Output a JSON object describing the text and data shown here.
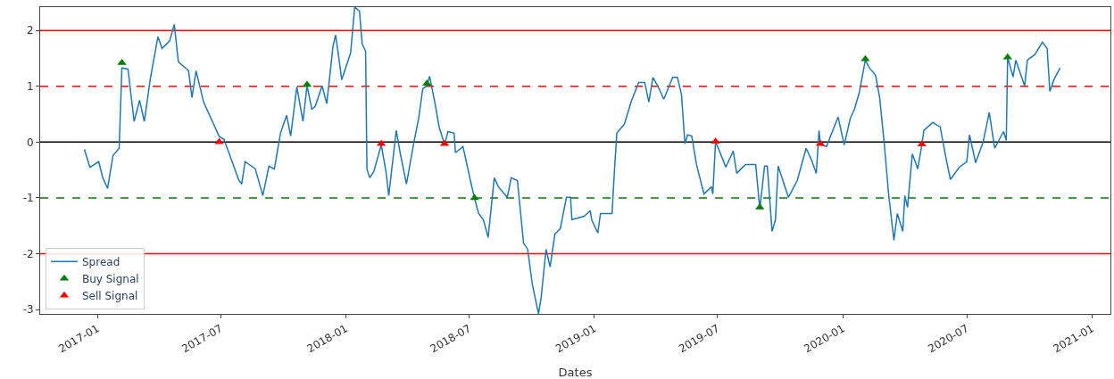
{
  "chart_data": {
    "type": "line",
    "xlabel": "Dates",
    "xlim": [
      "2016-10-09",
      "2021-01-28"
    ],
    "ylim": [
      -3.08,
      2.42
    ],
    "xticks": [
      {
        "value": "2017-01-01",
        "label": "2017-01"
      },
      {
        "value": "2017-07-01",
        "label": "2017-07"
      },
      {
        "value": "2018-01-01",
        "label": "2018-01"
      },
      {
        "value": "2018-07-01",
        "label": "2018-07"
      },
      {
        "value": "2019-01-01",
        "label": "2019-01"
      },
      {
        "value": "2019-07-01",
        "label": "2019-07"
      },
      {
        "value": "2020-01-01",
        "label": "2020-01"
      },
      {
        "value": "2020-07-01",
        "label": "2020-07"
      },
      {
        "value": "2021-01-01",
        "label": "2021-01"
      }
    ],
    "yticks": [
      -3,
      -2,
      -1,
      0,
      1,
      2
    ],
    "grid": false,
    "legend": "bottom left",
    "ref_lines": [
      {
        "axis": "y",
        "value": 2,
        "color": "#ff0000",
        "line_style": "solid"
      },
      {
        "axis": "y",
        "value": 1,
        "color": "#ff0000",
        "line_style": "dashed"
      },
      {
        "axis": "y",
        "value": 0,
        "color": "#000000",
        "line_style": "solid"
      },
      {
        "axis": "y",
        "value": -1,
        "color": "#008000",
        "line_style": "dashed"
      },
      {
        "axis": "y",
        "value": -2,
        "color": "#ff0000",
        "line_style": "solid"
      }
    ],
    "series": [
      {
        "name": "Spread",
        "color": "#1f77b4",
        "x": [
          "2016-12-13",
          "2016-12-21",
          "2017-01-03",
          "2017-01-09",
          "2017-01-16",
          "2017-01-24",
          "2017-02-02",
          "2017-02-06",
          "2017-02-15",
          "2017-02-24",
          "2017-03-04",
          "2017-03-11",
          "2017-03-20",
          "2017-03-31",
          "2017-04-06",
          "2017-04-17",
          "2017-04-24",
          "2017-04-30",
          "2017-05-15",
          "2017-05-20",
          "2017-05-26",
          "2017-06-06",
          "2017-06-19",
          "2017-06-29",
          "2017-07-06",
          "2017-07-28",
          "2017-08-01",
          "2017-08-06",
          "2017-08-21",
          "2017-09-01",
          "2017-09-10",
          "2017-09-18",
          "2017-09-27",
          "2017-10-06",
          "2017-10-12",
          "2017-10-21",
          "2017-10-30",
          "2017-11-05",
          "2017-11-12",
          "2017-11-17",
          "2017-11-27",
          "2017-12-04",
          "2017-12-13",
          "2017-12-17",
          "2017-12-26",
          "2018-01-08",
          "2018-01-14",
          "2018-01-21",
          "2018-01-25",
          "2018-01-30",
          "2018-02-01",
          "2018-02-05",
          "2018-02-11",
          "2018-02-22",
          "2018-03-01",
          "2018-03-05",
          "2018-03-16",
          "2018-03-22",
          "2018-03-31",
          "2018-04-11",
          "2018-04-18",
          "2018-04-24",
          "2018-04-30",
          "2018-05-04",
          "2018-05-12",
          "2018-05-18",
          "2018-05-26",
          "2018-05-31",
          "2018-06-09",
          "2018-06-11",
          "2018-06-22",
          "2018-07-03",
          "2018-07-09",
          "2018-07-15",
          "2018-07-22",
          "2018-07-29",
          "2018-08-07",
          "2018-08-13",
          "2018-08-26",
          "2018-09-01",
          "2018-09-10",
          "2018-09-19",
          "2018-09-25",
          "2018-10-02",
          "2018-10-11",
          "2018-10-15",
          "2018-10-22",
          "2018-10-28",
          "2018-11-04",
          "2018-11-12",
          "2018-11-21",
          "2018-11-27",
          "2018-11-29",
          "2018-12-17",
          "2018-12-26",
          "2018-12-28",
          "2019-01-06",
          "2019-01-10",
          "2019-01-27",
          "2019-01-30",
          "2019-02-03",
          "2019-02-14",
          "2019-02-24",
          "2019-03-07",
          "2019-03-16",
          "2019-03-22",
          "2019-03-28",
          "2019-04-04",
          "2019-04-13",
          "2019-04-26",
          "2019-05-03",
          "2019-05-09",
          "2019-05-14",
          "2019-05-18",
          "2019-05-24",
          "2019-05-31",
          "2019-06-11",
          "2019-06-22",
          "2019-06-24",
          "2019-06-28",
          "2019-07-09",
          "2019-07-13",
          "2019-07-24",
          "2019-07-29",
          "2019-08-11",
          "2019-08-26",
          "2019-09-01",
          "2019-09-08",
          "2019-09-12",
          "2019-09-19",
          "2019-09-24",
          "2019-09-28",
          "2019-10-13",
          "2019-10-26",
          "2019-11-08",
          "2019-11-16",
          "2019-11-23",
          "2019-11-27",
          "2019-11-29",
          "2019-12-08",
          "2019-12-25",
          "2020-01-03",
          "2020-01-12",
          "2020-01-18",
          "2020-01-25",
          "2020-02-03",
          "2020-02-09",
          "2020-02-18",
          "2020-02-24",
          "2020-03-02",
          "2020-03-08",
          "2020-03-16",
          "2020-03-21",
          "2020-03-29",
          "2020-04-01",
          "2020-04-05",
          "2020-04-12",
          "2020-04-20",
          "2020-04-26",
          "2020-04-29",
          "2020-05-12",
          "2020-05-23",
          "2020-06-01",
          "2020-06-07",
          "2020-06-20",
          "2020-07-01",
          "2020-07-05",
          "2020-07-14",
          "2020-07-25",
          "2020-08-03",
          "2020-08-11",
          "2020-08-24",
          "2020-08-28",
          "2020-08-30",
          "2020-09-07",
          "2020-09-11",
          "2020-09-24",
          "2020-09-28",
          "2020-10-09",
          "2020-10-20",
          "2020-10-27",
          "2020-10-31",
          "2020-11-06",
          "2020-11-15"
        ],
        "values": [
          -0.13,
          -0.45,
          -0.35,
          -0.64,
          -0.83,
          -0.24,
          -0.11,
          1.33,
          1.31,
          0.37,
          0.75,
          0.37,
          1.15,
          1.89,
          1.68,
          1.81,
          2.11,
          1.44,
          1.28,
          0.8,
          1.28,
          0.72,
          0.37,
          0.1,
          0.05,
          -0.69,
          -0.75,
          -0.35,
          -0.48,
          -0.96,
          -0.43,
          -0.48,
          0.16,
          0.48,
          0.11,
          0.99,
          0.37,
          1.01,
          0.59,
          0.64,
          1.01,
          0.69,
          1.71,
          1.92,
          1.12,
          1.6,
          2.42,
          2.35,
          1.76,
          1.63,
          -0.48,
          -0.64,
          -0.53,
          -0.05,
          -0.53,
          -0.96,
          0.21,
          -0.21,
          -0.75,
          0,
          0.43,
          0.96,
          1.01,
          1.18,
          0.69,
          0.27,
          -0.04,
          0.19,
          0.16,
          -0.19,
          -0.08,
          -0.69,
          -1.01,
          -1.28,
          -1.39,
          -1.71,
          -0.64,
          -0.8,
          -0.99,
          -0.64,
          -0.69,
          -1.81,
          -1.92,
          -2.56,
          -3.08,
          -2.77,
          -1.92,
          -2.24,
          -1.65,
          -1.55,
          -0.99,
          -0.99,
          -1.39,
          -1.33,
          -1.23,
          -1.39,
          -1.63,
          -1.28,
          -1.28,
          -0.61,
          0.16,
          0.32,
          0.72,
          1.07,
          1.07,
          0.72,
          1.16,
          1.01,
          0.77,
          1.16,
          1.16,
          0.85,
          -0.03,
          0.13,
          0.11,
          -0.4,
          -0.93,
          -0.8,
          -0.93,
          0.01,
          -0.32,
          -0.45,
          -0.16,
          -0.56,
          -0.4,
          -0.4,
          -1.2,
          -0.43,
          -0.43,
          -1.6,
          -1.39,
          -0.43,
          -0.99,
          -0.69,
          -0.11,
          -0.32,
          -0.56,
          0.21,
          -0.04,
          -0.08,
          0.45,
          -0.05,
          0.43,
          0.59,
          0.88,
          1.47,
          1.33,
          1.2,
          0.8,
          -0.05,
          -0.91,
          -1.76,
          -1.28,
          -1.6,
          -0.96,
          -1.17,
          -0.21,
          -0.48,
          -0.05,
          0.21,
          0.35,
          0.27,
          -0.32,
          -0.67,
          -0.45,
          -0.35,
          0.13,
          -0.37,
          0,
          0.53,
          -0.11,
          0.19,
          0.03,
          1.52,
          1.17,
          1.47,
          1.01,
          1.47,
          1.57,
          1.79,
          1.68,
          0.91,
          1.12,
          1.33
        ]
      },
      {
        "name": "Buy Signal",
        "type": "scatter",
        "marker": "triangle",
        "color": "#008000",
        "x": [
          "2017-02-06",
          "2017-11-05",
          "2018-04-30",
          "2018-07-09",
          "2019-09-01",
          "2020-02-03",
          "2020-08-30"
        ],
        "values": [
          1.42,
          1.03,
          1.05,
          -1.0,
          -1.17,
          1.49,
          1.52
        ]
      },
      {
        "name": "Sell Signal",
        "type": "scatter",
        "marker": "triangle",
        "color": "#ff0000",
        "x": [
          "2017-06-29",
          "2018-02-22",
          "2018-05-26",
          "2019-06-28",
          "2019-11-29",
          "2020-04-26"
        ],
        "values": [
          0.0,
          -0.03,
          -0.03,
          0.01,
          -0.03,
          -0.04
        ]
      }
    ]
  }
}
